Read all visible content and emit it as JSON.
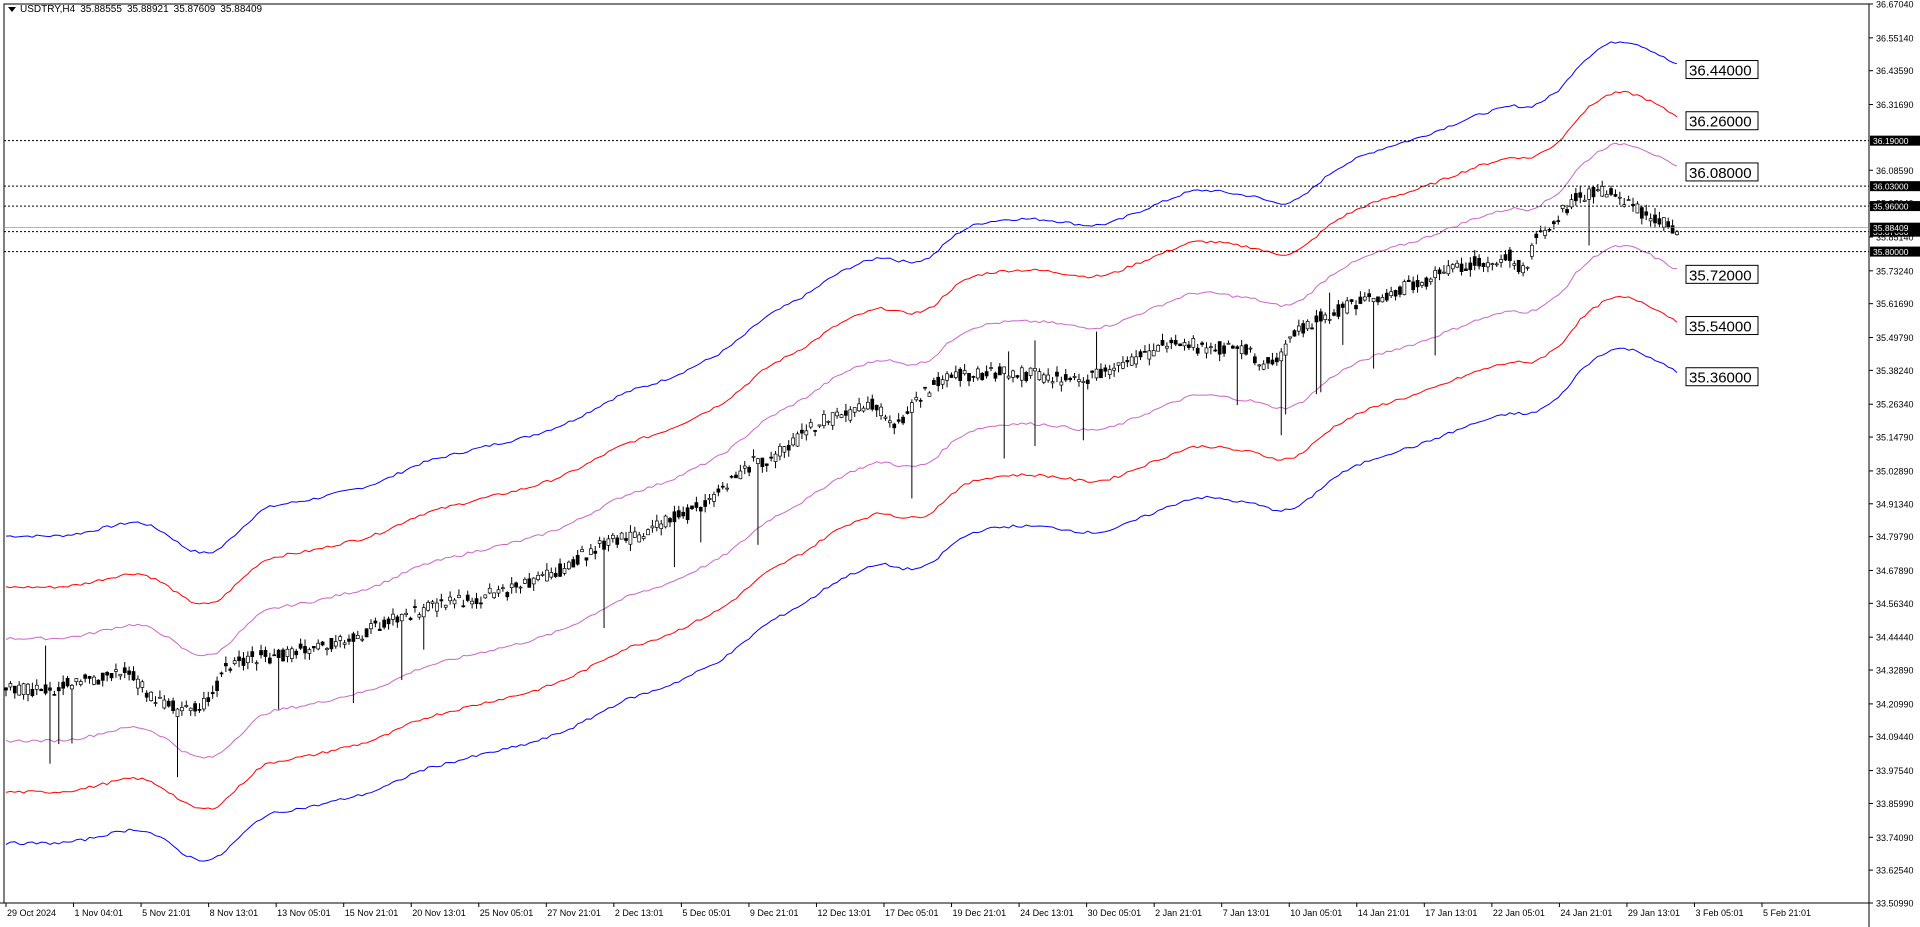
{
  "header": {
    "symbol": "USDTRY,H4",
    "open": "35.88555",
    "high": "35.88921",
    "low": "35.87609",
    "close": "35.88409"
  },
  "colors": {
    "background": "#ffffff",
    "candles": "#000000",
    "band_outer": "#0000ff",
    "band_middle": "#ff0000",
    "band_inner": "#cc66cc",
    "level_lines": "#000000"
  },
  "chart_data": {
    "type": "candlestick",
    "ylim": [
      33.5099,
      36.6704
    ],
    "y_ticks": [
      "36.67040",
      "36.55140",
      "36.43590",
      "36.31690",
      "36.08590",
      "35.97040",
      "35.85140",
      "35.73240",
      "35.61690",
      "35.49790",
      "35.38240",
      "35.26340",
      "35.14790",
      "35.02890",
      "34.91340",
      "34.79790",
      "34.67890",
      "34.56340",
      "34.44440",
      "34.32890",
      "34.20990",
      "34.09440",
      "33.97540",
      "33.85990",
      "33.74090",
      "33.62540",
      "33.50990"
    ],
    "x_tick_labels": [
      "29 Oct 2024",
      "1 Nov 04:01",
      "5 Nov 21:01",
      "8 Nov 13:01",
      "13 Nov 05:01",
      "15 Nov 21:01",
      "20 Nov 13:01",
      "25 Nov 05:01",
      "27 Nov 21:01",
      "2 Dec 13:01",
      "5 Dec 05:01",
      "9 Dec 21:01",
      "12 Dec 13:01",
      "17 Dec 05:01",
      "19 Dec 21:01",
      "24 Dec 13:01",
      "30 Dec 05:01",
      "2 Jan 21:01",
      "7 Jan 13:01",
      "10 Jan 05:01",
      "14 Jan 21:01",
      "17 Jan 13:01",
      "22 Jan 05:01",
      "24 Jan 21:01",
      "29 Jan 13:01",
      "3 Feb 05:01",
      "5 Feb 21:01"
    ],
    "horizontal_levels": [
      {
        "price": 36.19,
        "label": "36.19000"
      },
      {
        "price": 36.03,
        "label": "36.03000"
      },
      {
        "price": 35.96,
        "label": "35.96000"
      },
      {
        "price": 35.87,
        "label": "35.87000"
      },
      {
        "price": 35.8,
        "label": "35.80000"
      }
    ],
    "current_price": {
      "price": 35.884,
      "label": "35.88409"
    },
    "band_end_labels": [
      {
        "price": 36.44,
        "label": "36.44000"
      },
      {
        "price": 36.26,
        "label": "36.26000"
      },
      {
        "price": 36.08,
        "label": "36.08000"
      },
      {
        "price": 35.72,
        "label": "35.72000"
      },
      {
        "price": 35.54,
        "label": "35.54000"
      },
      {
        "price": 35.36,
        "label": "35.36000"
      }
    ],
    "bands": [
      {
        "name": "upper_outer",
        "color": "#0000ff",
        "offset": 0.54
      },
      {
        "name": "upper_middle",
        "color": "#ff0000",
        "offset": 0.36
      },
      {
        "name": "upper_inner",
        "color": "#cc66cc",
        "offset": 0.18
      },
      {
        "name": "lower_inner",
        "color": "#cc66cc",
        "offset": -0.18
      },
      {
        "name": "lower_middle",
        "color": "#ff0000",
        "offset": -0.36
      },
      {
        "name": "lower_outer",
        "color": "#0000ff",
        "offset": -0.54
      }
    ],
    "price_path": [
      [
        0,
        34.26
      ],
      [
        10,
        34.26
      ],
      [
        20,
        34.3
      ],
      [
        28,
        34.32
      ],
      [
        33,
        34.24
      ],
      [
        40,
        34.18
      ],
      [
        46,
        34.22
      ],
      [
        50,
        34.34
      ],
      [
        56,
        34.37
      ],
      [
        62,
        34.38
      ],
      [
        68,
        34.4
      ],
      [
        75,
        34.43
      ],
      [
        80,
        34.44
      ],
      [
        86,
        34.5
      ],
      [
        92,
        34.53
      ],
      [
        98,
        34.55
      ],
      [
        105,
        34.58
      ],
      [
        112,
        34.6
      ],
      [
        118,
        34.63
      ],
      [
        125,
        34.67
      ],
      [
        130,
        34.72
      ],
      [
        135,
        34.76
      ],
      [
        140,
        34.79
      ],
      [
        145,
        34.8
      ],
      [
        150,
        34.85
      ],
      [
        155,
        34.88
      ],
      [
        160,
        34.92
      ],
      [
        165,
        35.0
      ],
      [
        170,
        35.06
      ],
      [
        175,
        35.08
      ],
      [
        180,
        35.14
      ],
      [
        185,
        35.2
      ],
      [
        190,
        35.22
      ],
      [
        195,
        35.25
      ],
      [
        198,
        35.26
      ],
      [
        202,
        35.17
      ],
      [
        208,
        35.29
      ],
      [
        212,
        35.34
      ],
      [
        218,
        35.37
      ],
      [
        222,
        35.37
      ],
      [
        228,
        35.38
      ],
      [
        232,
        35.37
      ],
      [
        238,
        35.36
      ],
      [
        244,
        35.34
      ],
      [
        248,
        35.37
      ],
      [
        252,
        35.4
      ],
      [
        258,
        35.43
      ],
      [
        263,
        35.47
      ],
      [
        268,
        35.49
      ],
      [
        272,
        35.46
      ],
      [
        278,
        35.46
      ],
      [
        282,
        35.45
      ],
      [
        286,
        35.4
      ],
      [
        290,
        35.44
      ],
      [
        294,
        35.52
      ],
      [
        298,
        35.56
      ],
      [
        303,
        35.59
      ],
      [
        308,
        35.63
      ],
      [
        313,
        35.64
      ],
      [
        318,
        35.67
      ],
      [
        323,
        35.7
      ],
      [
        328,
        35.73
      ],
      [
        333,
        35.76
      ],
      [
        338,
        35.77
      ],
      [
        342,
        35.79
      ],
      [
        345,
        35.73
      ],
      [
        348,
        35.84
      ],
      [
        352,
        35.9
      ],
      [
        355,
        35.96
      ],
      [
        358,
        35.99
      ],
      [
        362,
        36.01
      ],
      [
        366,
        36.0
      ],
      [
        370,
        35.96
      ],
      [
        374,
        35.92
      ],
      [
        377,
        35.9
      ],
      [
        380,
        35.88
      ]
    ]
  }
}
